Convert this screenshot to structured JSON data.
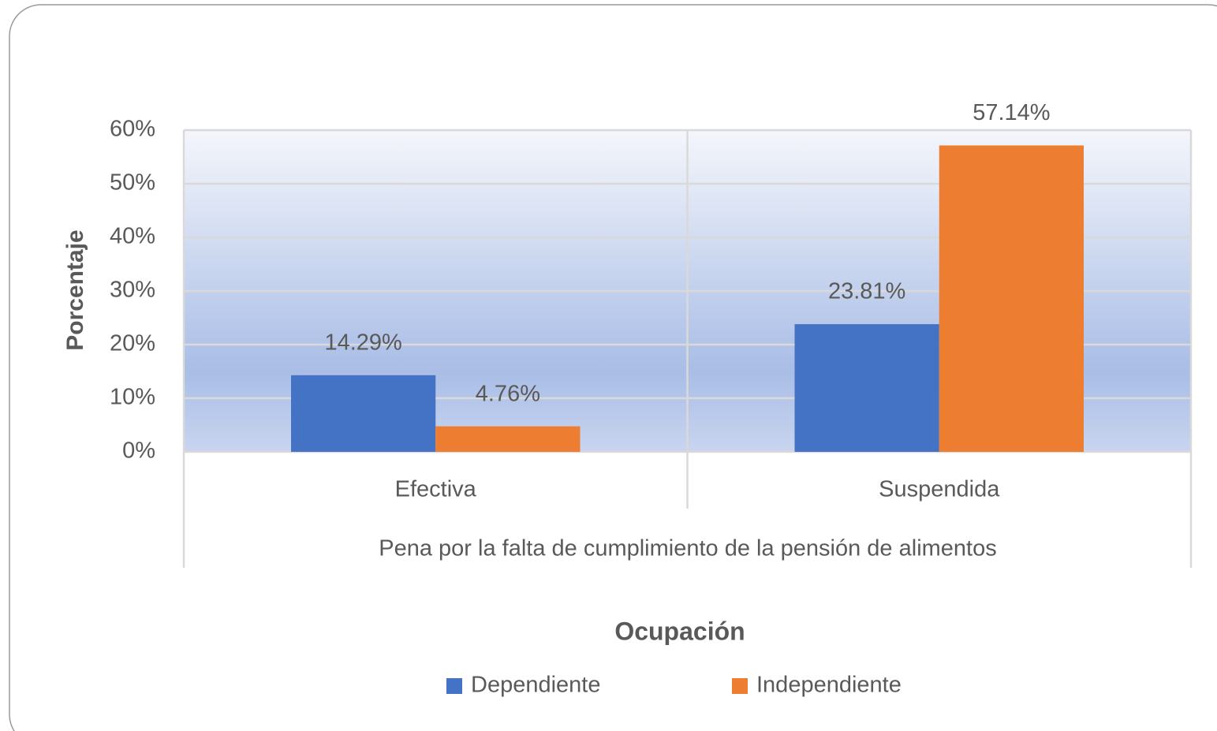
{
  "chart_data": {
    "type": "bar",
    "y_label": "Porcentaje",
    "categories": [
      "Efectiva",
      "Suspendida"
    ],
    "group_label": "Pena por  la falta de cumplimiento de la pensión de alimentos",
    "legend_title": "Ocupación",
    "series": [
      {
        "name": "Dependiente",
        "color": "#4472c4",
        "values": [
          14.29,
          23.81
        ],
        "value_labels": [
          "14.29%",
          "23.81%"
        ]
      },
      {
        "name": "Independiente",
        "color": "#ed7d31",
        "values": [
          4.76,
          57.14
        ],
        "value_labels": [
          "4.76%",
          "57.14%"
        ]
      }
    ],
    "ylim": [
      0,
      60
    ],
    "yticks": [
      {
        "value": 0,
        "label": "0%"
      },
      {
        "value": 10,
        "label": "10%"
      },
      {
        "value": 20,
        "label": "20%"
      },
      {
        "value": 30,
        "label": "30%"
      },
      {
        "value": 40,
        "label": "40%"
      },
      {
        "value": 50,
        "label": "50%"
      },
      {
        "value": 60,
        "label": "60%"
      }
    ],
    "grid": true,
    "legend": "bottom"
  }
}
